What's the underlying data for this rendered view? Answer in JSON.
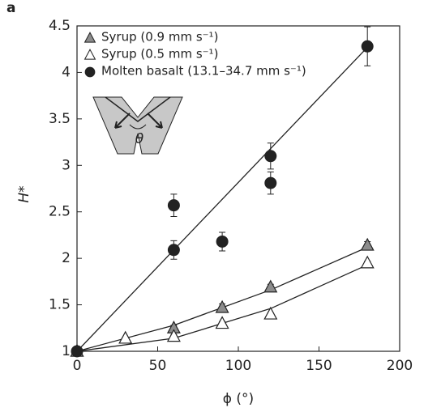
{
  "chart_data": {
    "type": "scatter",
    "panel_label": "a",
    "xlabel": "ϕ (°)",
    "ylabel": "H*",
    "inset_label": "θ",
    "xlim": [
      0,
      200
    ],
    "xticks": [
      0,
      50,
      100,
      150,
      200
    ],
    "ylim": [
      1,
      4.5
    ],
    "yticks": [
      1,
      1.5,
      2,
      2.5,
      3,
      3.5,
      4,
      4.5
    ],
    "legend": "upper left",
    "series": [
      {
        "name": "Syrup (0.9 mm s⁻¹)",
        "color": "#222222",
        "fill": "#8c8c8c",
        "marker": "triangle",
        "x": [
          0,
          60,
          90,
          120,
          180
        ],
        "values": [
          1.0,
          1.25,
          1.47,
          1.69,
          2.14
        ],
        "errors": [
          0.02,
          0.03,
          0.04,
          0.03,
          0.04
        ]
      },
      {
        "name": "Syrup (0.5 mm s⁻¹)",
        "color": "#222222",
        "fill": "#ffffff",
        "marker": "triangle",
        "x": [
          0,
          30,
          60,
          90,
          120,
          180
        ],
        "values": [
          1.0,
          1.14,
          1.16,
          1.3,
          1.4,
          1.95
        ],
        "errors": [
          0.01,
          0.01,
          0.02,
          0.02,
          0.01,
          0.02
        ]
      },
      {
        "name": "Molten basalt (13.1–34.7 mm s⁻¹)",
        "color": "#222222",
        "fill": "#222222",
        "marker": "circle",
        "x": [
          0,
          60,
          60,
          90,
          120,
          120,
          180
        ],
        "values": [
          1.0,
          2.57,
          2.09,
          2.18,
          3.1,
          2.81,
          4.28
        ],
        "errors": [
          0.02,
          0.12,
          0.1,
          0.1,
          0.14,
          0.12,
          0.21
        ]
      }
    ],
    "fit_lines": [
      {
        "color": "#222222",
        "x": [
          0,
          60,
          120,
          180
        ],
        "values": [
          1.0,
          1.28,
          1.66,
          2.12
        ]
      },
      {
        "color": "#222222",
        "x": [
          0,
          60,
          120,
          180
        ],
        "values": [
          1.0,
          1.14,
          1.46,
          1.93
        ]
      },
      {
        "color": "#222222",
        "x": [
          0,
          180
        ],
        "values": [
          1.0,
          4.27
        ]
      }
    ]
  }
}
